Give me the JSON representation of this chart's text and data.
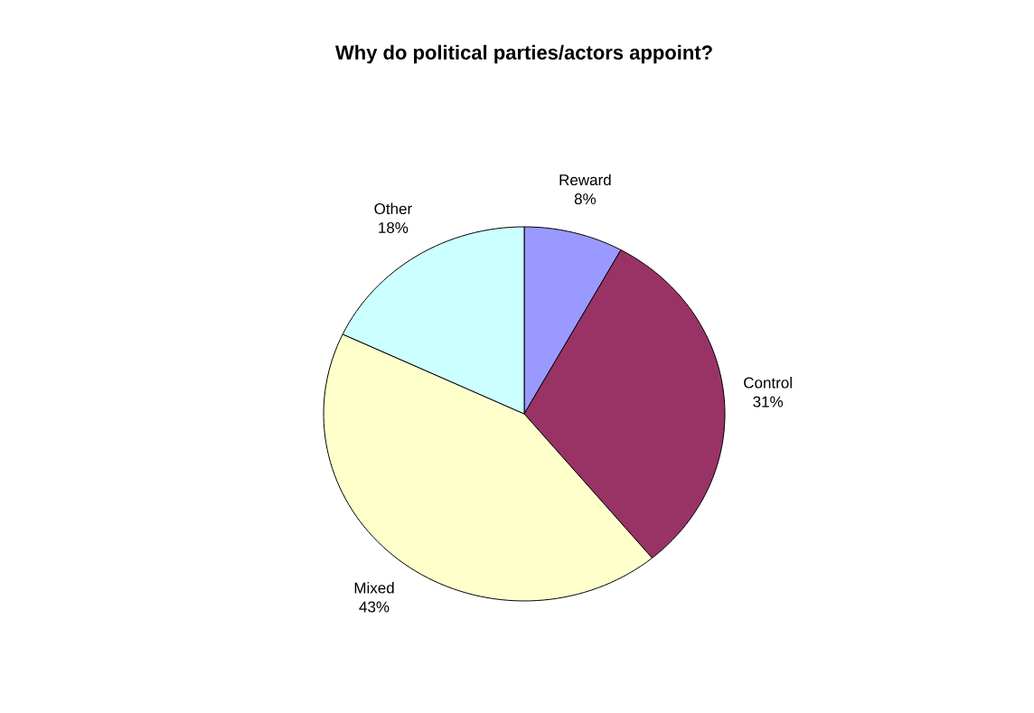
{
  "chart_data": {
    "type": "pie",
    "title": "Why do political parties/actors appoint?",
    "categories": [
      "Reward",
      "Control",
      "Mixed",
      "Other"
    ],
    "values": [
      8,
      31,
      43,
      18
    ],
    "colors": [
      "#9999ff",
      "#993366",
      "#ffffcc",
      "#ccffff"
    ],
    "value_labels": [
      "8%",
      "31%",
      "43%",
      "18%"
    ]
  }
}
